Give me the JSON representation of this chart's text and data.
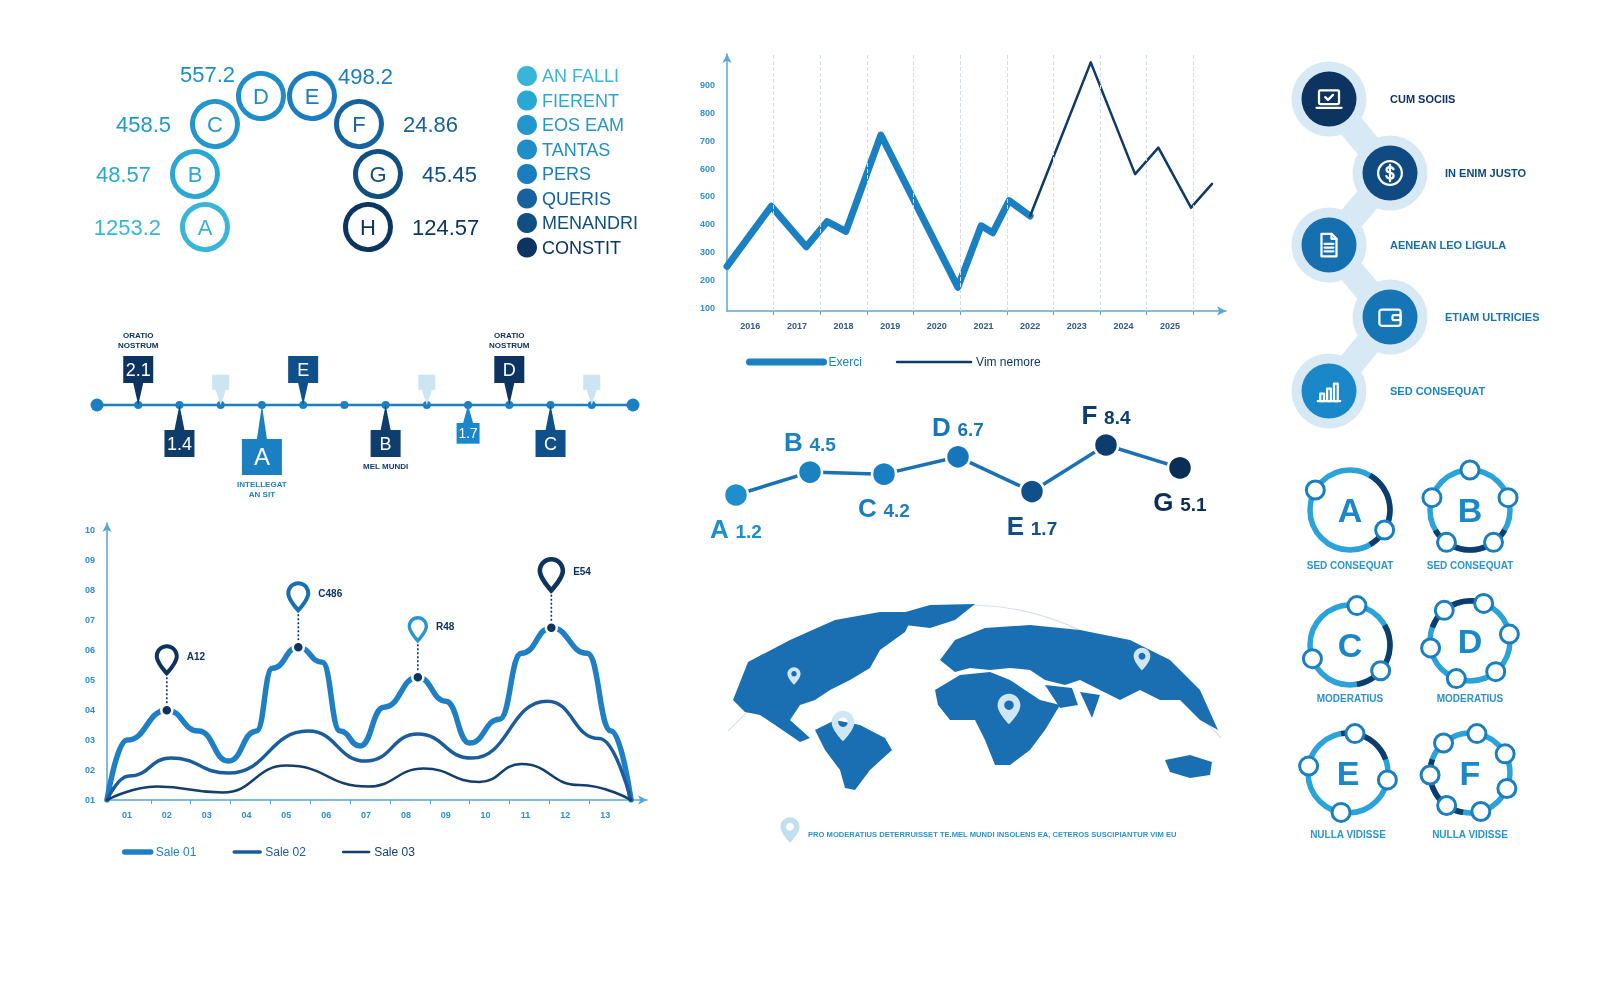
{
  "chart_data": [
    {
      "type": "other",
      "categories": [
        "A",
        "B",
        "C",
        "D",
        "E",
        "F",
        "G",
        "H"
      ],
      "series": [
        {
          "name": "AN FALLI",
          "color": "#37b6d9",
          "values": [
            1253.2,
            null,
            null,
            null,
            null,
            null,
            null,
            null
          ]
        },
        {
          "name": "FIERENT",
          "color": "#2aa8d4",
          "values": [
            null,
            48.57,
            null,
            null,
            null,
            null,
            null,
            null
          ]
        },
        {
          "name": "EOS EAM",
          "color": "#2396cc",
          "values": [
            null,
            null,
            458.5,
            null,
            null,
            null,
            null,
            null
          ]
        },
        {
          "name": "TANTAS",
          "color": "#1e8ec8",
          "values": [
            null,
            null,
            null,
            557.2,
            null,
            null,
            null,
            null
          ]
        },
        {
          "name": "PERS",
          "color": "#1a7dc0",
          "values": [
            null,
            null,
            null,
            null,
            498.2,
            null,
            null,
            null
          ]
        },
        {
          "name": "QUERIS",
          "color": "#15629f",
          "values": [
            null,
            null,
            null,
            null,
            null,
            24.86,
            null,
            null
          ]
        },
        {
          "name": "MENANDRI",
          "color": "#104f82",
          "values": [
            null,
            null,
            null,
            null,
            null,
            null,
            45.45,
            null
          ]
        },
        {
          "name": "CONSTIT",
          "color": "#0b3560",
          "values": [
            null,
            null,
            null,
            null,
            null,
            null,
            null,
            124.57
          ]
        }
      ],
      "data_labels": true,
      "legend": "right"
    },
    {
      "type": "line",
      "series": [
        {
          "name": "Exerci",
          "color": "#1a80c2",
          "x": [
            2015.5,
            2016.45,
            2017.2,
            2017.65,
            2018.05,
            2018.8,
            2020.45,
            2020.95,
            2021.2,
            2021.55,
            2022
          ],
          "values": [
            250,
            465,
            320,
            410,
            375,
            720,
            175,
            395,
            370,
            485,
            430
          ]
        },
        {
          "name": "Vim nemore",
          "color": "#0d3a66",
          "x": [
            2022,
            2023.3,
            2024.25,
            2024.75,
            2025.45,
            2025.9
          ],
          "values": [
            430,
            980,
            580,
            675,
            460,
            545
          ]
        }
      ],
      "xlim": [
        2015.5,
        2026.2
      ],
      "ylim": [
        90,
        1010
      ],
      "xticks": [
        2016,
        {
          "value": 2016.5,
          "label": null
        },
        2017,
        {
          "value": 2017.5,
          "label": null
        },
        2018,
        {
          "value": 2018.5,
          "label": null
        },
        2019,
        {
          "value": 2019.5,
          "label": null
        },
        2020,
        {
          "value": 2020.5,
          "label": null
        },
        2021,
        {
          "value": 2021.5,
          "label": null
        },
        2022,
        {
          "value": 2022.5,
          "label": null
        },
        2023,
        {
          "value": 2023.5,
          "label": null
        },
        2024,
        {
          "value": 2024.5,
          "label": null
        },
        2025,
        {
          "value": 2025.5,
          "label": null
        }
      ],
      "yticks": [
        100,
        200,
        300,
        400,
        500,
        600,
        700,
        800,
        900
      ],
      "grid": "x",
      "legend": "bottom left"
    },
    {
      "type": "other",
      "categories": [
        "CUM SOCIIS",
        "IN ENIM JUSTO",
        "AENEAN LEO LIGULA",
        "ETIAM ULTRICIES",
        "SED CONSEQUAT"
      ],
      "colors": [
        "#0d3461",
        "#0f4a82",
        "#1670b0",
        "#1675b5",
        "#1a87c8"
      ]
    },
    {
      "type": "other",
      "categories": [
        null,
        "2.1",
        "1.4",
        null,
        "A",
        "E",
        null,
        "B",
        null,
        "1.7",
        "D",
        "C",
        null,
        null
      ],
      "color": "#1a80c2",
      "colors": [
        null,
        "#0d3461",
        "#0f3d6b",
        "#cde5f2",
        "#1a80c2",
        "#0f4f8a",
        null,
        "#0e3e6e",
        "#cde5f2",
        "#1a87cc",
        "#0d3461",
        "#0f4f8a",
        "#cde5f2",
        null
      ],
      "annotations": [
        "ORATIO NOSTRUM",
        "INTELLEGAT AN SIT",
        "MEL MUNDI",
        "ORATIO NOSTRUM"
      ]
    },
    {
      "type": "line",
      "categories": [
        null,
        null,
        null,
        null,
        null,
        null,
        null
      ],
      "values": [
        1.2,
        4.5,
        4.2,
        6.7,
        1.7,
        8.4,
        5.1
      ],
      "value_labels": [
        "A 1.2",
        "B 4.5",
        "C 4.2",
        "D 6.7",
        "E 1.7",
        "F 8.4",
        "G 5.1"
      ],
      "color": "#1a72b4",
      "colors": [
        "#1e8fcc",
        "#1b82c2",
        "#1a7fc0",
        "#1776bb",
        "#0f4f8a",
        "#0c3d6e",
        "#0a2f57"
      ],
      "tick_labels": false,
      "marker": "circle"
    },
    {
      "type": "other",
      "categories": [
        "A",
        "B",
        "C",
        "D",
        "E",
        "F"
      ],
      "annotations": [
        "SED CONSEQUAT",
        "SED CONSEQUAT",
        "MODERATIUS",
        "MODERATIUS",
        "NULLA VIDISSE",
        "NULLA VIDISSE"
      ]
    },
    {
      "type": "line",
      "series": [
        {
          "name": "Sale 01",
          "color": "#1f7fc4",
          "x": [
            0.5,
            1.0,
            2.0,
            2.8,
            3.55,
            4.25,
            4.65,
            5.3,
            5.9,
            6.35,
            6.85,
            7.45,
            8.3,
            9.0,
            9.6,
            10.35,
            10.9,
            11.65,
            12.55,
            13.15,
            13.65
          ],
          "values": [
            1.0,
            3.0,
            4.0,
            3.3,
            2.3,
            3.3,
            5.4,
            6.1,
            5.6,
            3.3,
            2.8,
            4.1,
            5.1,
            4.3,
            2.9,
            3.7,
            5.9,
            6.75,
            5.9,
            3.3,
            1.0
          ]
        },
        {
          "name": "Sale 02",
          "color": "#1b5d9c",
          "x": [
            0.5,
            1.05,
            2.1,
            3.55,
            5.55,
            7.0,
            8.3,
            9.65,
            11.55,
            12.85,
            13.65
          ],
          "values": [
            1.0,
            1.8,
            2.4,
            1.9,
            3.3,
            2.3,
            3.2,
            2.4,
            4.3,
            3.05,
            1.0
          ]
        },
        {
          "name": "Sale 03",
          "color": "#123f6e",
          "x": [
            0.5,
            1.75,
            3.4,
            5.0,
            7.05,
            8.45,
            9.85,
            10.9,
            12.35,
            13.65
          ],
          "values": [
            1.0,
            1.45,
            1.25,
            2.15,
            1.45,
            2.05,
            1.6,
            2.2,
            1.5,
            1.0
          ]
        }
      ],
      "xlim": [
        0.5,
        14.05
      ],
      "ylim": [
        1,
        10.25
      ],
      "xticks": [
        {
          "value": 1,
          "label": "01"
        },
        {
          "value": 1.6,
          "label": null
        },
        {
          "value": 2,
          "label": "02"
        },
        {
          "value": 2.6,
          "label": null
        },
        {
          "value": 3,
          "label": "03"
        },
        {
          "value": 3.6,
          "label": null
        },
        {
          "value": 4,
          "label": "04"
        },
        {
          "value": 4.6,
          "label": null
        },
        {
          "value": 5,
          "label": "05"
        },
        {
          "value": 5.6,
          "label": null
        },
        {
          "value": 6,
          "label": "06"
        },
        {
          "value": 6.6,
          "label": null
        },
        {
          "value": 7,
          "label": "07"
        },
        {
          "value": 7.6,
          "label": null
        },
        {
          "value": 8,
          "label": "08"
        },
        {
          "value": 8.6,
          "label": null
        },
        {
          "value": 9,
          "label": "09"
        },
        {
          "value": 9.6,
          "label": null
        },
        {
          "value": 10,
          "label": "10"
        },
        {
          "value": 10.6,
          "label": null
        },
        {
          "value": 11,
          "label": "11"
        },
        {
          "value": 11.6,
          "label": null
        },
        {
          "value": 12,
          "label": "12"
        },
        {
          "value": 12.6,
          "label": null
        },
        {
          "value": 13,
          "label": "13"
        }
      ],
      "yticks": [
        {
          "value": 1,
          "label": "01"
        },
        {
          "value": 2,
          "label": "02"
        },
        {
          "value": 3,
          "label": "03"
        },
        {
          "value": 4,
          "label": "04"
        },
        {
          "value": 5,
          "label": "05"
        },
        {
          "value": 6,
          "label": "06"
        },
        {
          "value": 7,
          "label": "07"
        },
        {
          "value": 8,
          "label": "08"
        },
        {
          "value": 9,
          "label": "09"
        },
        10
      ],
      "annotations": [
        "A12",
        "C486",
        "R48",
        "E54"
      ],
      "legend": "bottom left"
    },
    {
      "type": "other",
      "annotations": [
        "PRO MODERATIUS DETERRUISSET TE.MEL MUNDI INSOLENS EA, CETEROS SUSCIPIANTUR VIM EU"
      ]
    }
  ]
}
